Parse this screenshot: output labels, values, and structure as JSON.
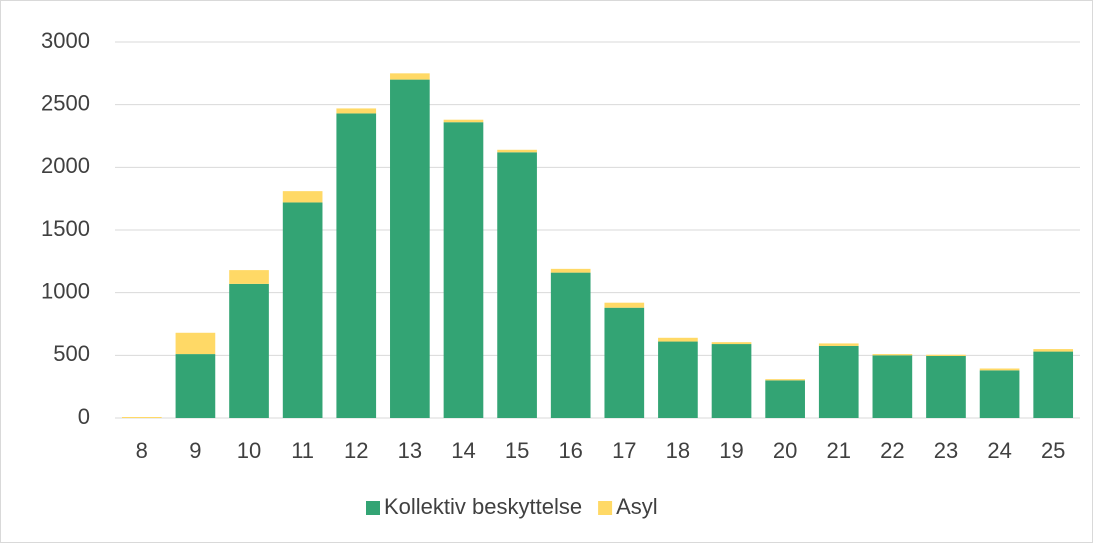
{
  "chart_data": {
    "type": "stacked_bar",
    "categories": [
      "8",
      "9",
      "10",
      "11",
      "12",
      "13",
      "14",
      "15",
      "16",
      "17",
      "18",
      "19",
      "20",
      "21",
      "22",
      "23",
      "24",
      "25"
    ],
    "series": [
      {
        "name": "Kollektiv beskyttelse",
        "color": "#33a474",
        "values": [
          0,
          510,
          1070,
          1720,
          2430,
          2700,
          2360,
          2120,
          1160,
          880,
          610,
          590,
          300,
          575,
          500,
          495,
          380,
          530
        ]
      },
      {
        "name": "Asyl",
        "color": "#ffd966",
        "values": [
          8,
          170,
          110,
          90,
          40,
          50,
          20,
          20,
          30,
          40,
          30,
          15,
          10,
          20,
          10,
          10,
          15,
          20
        ]
      }
    ],
    "ylim": [
      0,
      3000
    ],
    "yticks": [
      0,
      500,
      1000,
      1500,
      2000,
      2500,
      3000
    ],
    "grid": true,
    "legend": "bottom"
  }
}
